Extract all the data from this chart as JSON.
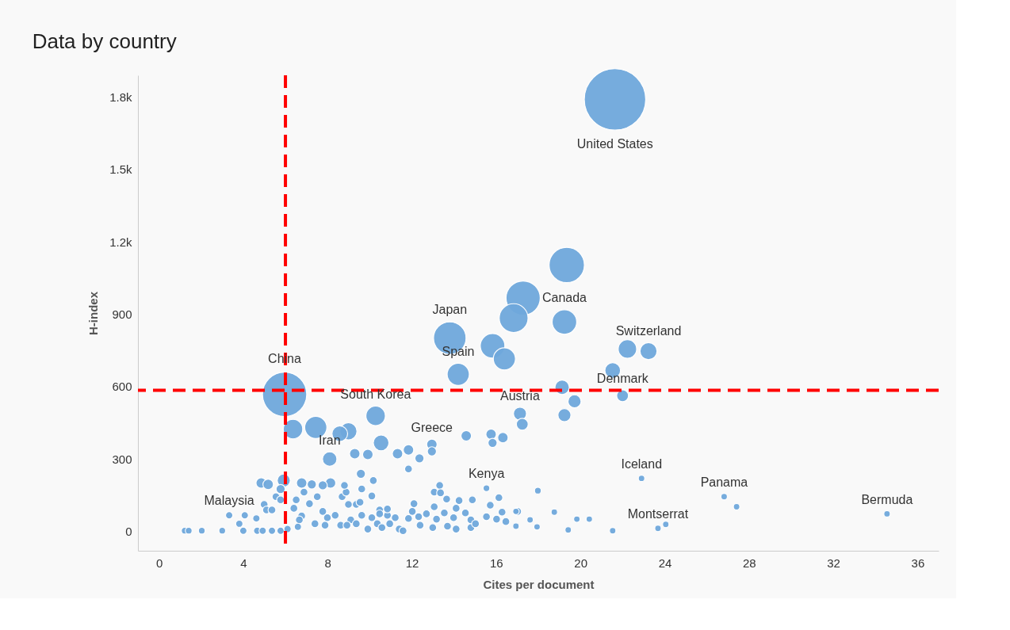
{
  "chart_data": {
    "type": "bubble",
    "title": "Data by country",
    "xlabel": "Cites per document",
    "ylabel": "H-index",
    "xlim": [
      -1,
      37
    ],
    "xticks": [
      0,
      4,
      8,
      12,
      16,
      20,
      24,
      28,
      32,
      36
    ],
    "ylim": [
      -80,
      1890
    ],
    "yticks": [
      0,
      300,
      600,
      900,
      {
        "value": 1200,
        "label": "1.2k"
      },
      {
        "value": 1500,
        "label": "1.5k"
      },
      {
        "value": 1800,
        "label": "1.8k"
      }
    ],
    "grid": false,
    "series": [
      {
        "color": "#6fa8dc",
        "x": [
          21.64,
          5.96,
          13.8,
          17.28,
          19.35,
          16.83,
          19.24,
          15.83,
          16.39,
          14.2,
          22.23,
          23.23,
          21.53,
          19.13,
          19.72,
          19.24,
          22.0,
          17.13,
          17.24,
          15.76,
          16.32,
          15.83,
          14.58,
          12.95,
          12.95,
          12.36,
          11.84,
          11.32,
          11.84,
          10.54,
          10.28,
          9.91,
          9.29,
          8.99,
          8.58,
          7.44,
          6.36,
          8.1,
          9.58,
          15.54,
          17.98,
          22.9,
          26.82,
          27.41,
          34.55,
          23.68,
          24.05,
          21.53,
          20.42,
          19.83,
          19.42,
          18.76,
          17.94,
          17.61,
          16.94,
          16.94,
          1.22,
          1.41,
          2.03,
          3.0,
          3.33,
          3.81,
          4.07,
          4.62,
          4.0,
          4.66,
          4.92,
          5.36,
          5.77,
          6.1,
          6.59,
          4.99,
          5.1,
          5.36,
          5.55,
          5.77,
          6.51,
          7.14,
          7.51,
          6.88,
          6.4,
          6.77,
          6.66,
          7.77,
          7.99,
          7.4,
          7.88,
          8.36,
          8.69,
          8.99,
          9.36,
          9.1,
          9.62,
          8.62,
          9.36,
          10.1,
          10.47,
          10.84,
          11.21,
          10.36,
          10.95,
          9.54,
          10.1,
          9.62,
          8.88,
          4.85,
          5.18,
          5.92,
          5.77,
          6.77,
          7.25,
          7.77,
          8.14,
          8.8,
          10.17,
          13.32,
          13.06,
          13.36,
          13.65,
          14.24,
          14.87,
          16.13,
          12.1,
          13.06,
          14.1,
          15.72,
          10.84,
          12.02,
          12.69,
          13.54,
          14.54,
          15.54,
          16.28,
          17.02,
          11.84,
          12.32,
          13.17,
          13.98,
          14.8,
          16.02,
          16.46,
          11.4,
          11.58,
          12.39,
          12.99,
          13.69,
          14.1,
          14.8,
          15.02,
          10.58,
          10.47,
          8.92,
          9.91
        ],
        "values": [
          1790,
          568,
          801,
          967,
          1104,
          884,
          868,
          769,
          715,
          651,
          756,
          747,
          667,
          597,
          539,
          482,
          562,
          488,
          444,
          403,
          389,
          367,
          396,
          361,
          332,
          303,
          338,
          322,
          259,
          367,
          479,
          319,
          322,
          415,
          405,
          431,
          424,
          300,
          239,
          179,
          169,
          220,
          144,
          102,
          73,
          13,
          29,
          3,
          51,
          51,
          6,
          80,
          19,
          48,
          83,
          22,
          3,
          3,
          3,
          3,
          67,
          32,
          67,
          54,
          3,
          3,
          3,
          3,
          3,
          10,
          19,
          112,
          89,
          89,
          144,
          131,
          131,
          115,
          144,
          163,
          96,
          64,
          48,
          83,
          57,
          32,
          26,
          67,
          144,
          112,
          112,
          48,
          67,
          26,
          32,
          57,
          89,
          67,
          57,
          32,
          32,
          121,
          147,
          176,
          163,
          201,
          195,
          211,
          176,
          201,
          195,
          191,
          201,
          191,
          211,
          191,
          163,
          160,
          134,
          128,
          131,
          140,
          115,
          102,
          96,
          109,
          93,
          83,
          73,
          77,
          77,
          61,
          80,
          83,
          54,
          61,
          51,
          57,
          48,
          51,
          41,
          10,
          3,
          26,
          16,
          22,
          10,
          16,
          32,
          16,
          73,
          26,
          10
        ],
        "sizes": [
          1,
          0.52,
          0.28,
          0.31,
          0.33,
          0.22,
          0.16,
          0.16,
          0.13,
          0.13,
          0.09,
          0.077,
          0.065,
          0.055,
          0.045,
          0.045,
          0.037,
          0.045,
          0.037,
          0.029,
          0.029,
          0.022,
          0.029,
          0.029,
          0.022,
          0.022,
          0.029,
          0.029,
          0.016,
          0.065,
          0.1,
          0.029,
          0.029,
          0.077,
          0.065,
          0.13,
          0.1,
          0.055,
          0.022,
          0.012,
          0.012,
          0.011,
          0.011,
          0.011,
          0.011,
          0.011,
          0.011,
          0.011,
          0.011,
          0.011,
          0.011,
          0.011,
          0.011,
          0.011,
          0.011,
          0.011,
          0.012,
          0.012,
          0.012,
          0.012,
          0.014,
          0.014,
          0.014,
          0.014,
          0.014,
          0.014,
          0.014,
          0.014,
          0.014,
          0.014,
          0.014,
          0.016,
          0.016,
          0.016,
          0.016,
          0.016,
          0.016,
          0.016,
          0.016,
          0.016,
          0.016,
          0.016,
          0.016,
          0.016,
          0.016,
          0.016,
          0.016,
          0.016,
          0.016,
          0.016,
          0.016,
          0.016,
          0.016,
          0.016,
          0.016,
          0.016,
          0.016,
          0.016,
          0.016,
          0.016,
          0.016,
          0.016,
          0.016,
          0.016,
          0.016,
          0.029,
          0.029,
          0.045,
          0.022,
          0.029,
          0.022,
          0.022,
          0.029,
          0.016,
          0.016,
          0.016,
          0.016,
          0.016,
          0.016,
          0.016,
          0.016,
          0.016,
          0.016,
          0.016,
          0.016,
          0.016,
          0.016,
          0.016,
          0.016,
          0.016,
          0.016,
          0.016,
          0.016,
          0.016,
          0.016,
          0.016,
          0.016,
          0.016,
          0.016,
          0.016,
          0.016,
          0.016,
          0.016,
          0.016,
          0.016,
          0.016,
          0.016,
          0.016,
          0.016,
          0.016,
          0.016,
          0.016,
          0.016
        ]
      }
    ],
    "annotations": [
      {
        "text": "United States",
        "x": 21.64,
        "y": 1790
      },
      {
        "text": "China",
        "x": 5.96,
        "y": 568
      },
      {
        "text": "Japan",
        "x": 13.8,
        "y": 801
      },
      {
        "text": "Canada",
        "x": 19.24,
        "y": 868
      },
      {
        "text": "Switzerland",
        "x": 23.23,
        "y": 747
      },
      {
        "text": "South Korea",
        "x": 10.28,
        "y": 479
      },
      {
        "text": "Spain",
        "x": 14.2,
        "y": 651
      },
      {
        "text": "Austria",
        "x": 17.13,
        "y": 488
      },
      {
        "text": "Denmark",
        "x": 22.0,
        "y": 562
      },
      {
        "text": "Greece",
        "x": 12.95,
        "y": 361
      },
      {
        "text": "Iran",
        "x": 8.1,
        "y": 300
      },
      {
        "text": "Kenya",
        "x": 15.54,
        "y": 179
      },
      {
        "text": "Iceland",
        "x": 22.9,
        "y": 220
      },
      {
        "text": "Panama",
        "x": 26.82,
        "y": 144
      },
      {
        "text": "Malaysia",
        "x": 3.33,
        "y": 67
      },
      {
        "text": "Montserrat",
        "x": 23.68,
        "y": 13
      },
      {
        "text": "Bermuda",
        "x": 34.55,
        "y": 73
      }
    ],
    "ref_lines": [
      {
        "axis": "x",
        "value": 6,
        "color": "#ff0000",
        "line_style": "dashed"
      },
      {
        "axis": "y",
        "value": 585,
        "color": "#ff0000",
        "line_style": "dashed"
      }
    ]
  }
}
